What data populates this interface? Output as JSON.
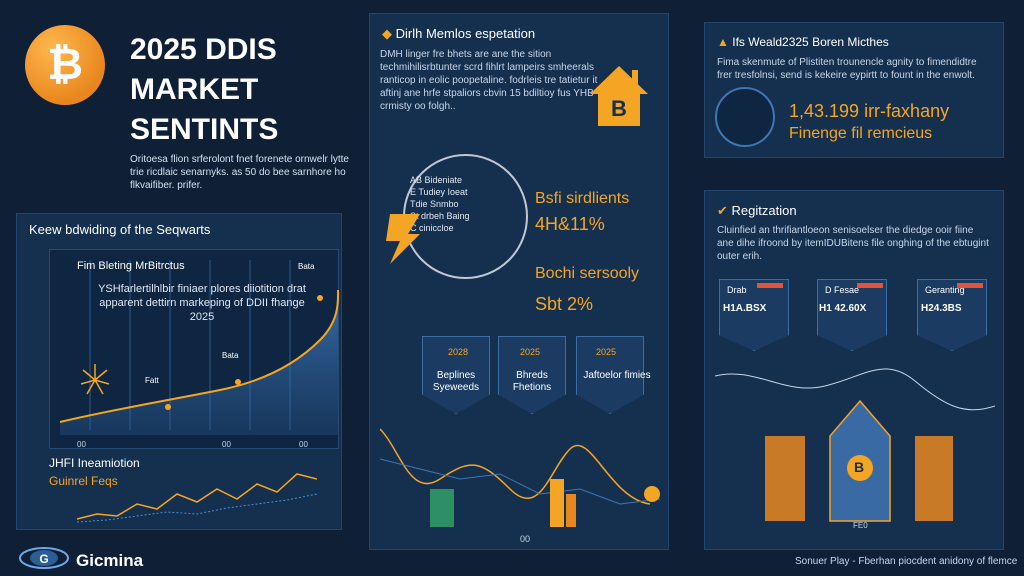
{
  "header": {
    "title_line1": "2025 DDIS",
    "title_line2": "MARKET",
    "title_line3": "SENTINTS",
    "subtitle": "Oritoesa flion srferolont fnet forenete ornwelr lytte trie ricdlaic senarnyks. as 50 do bee sarnhore ho flkvaifiber. prifer."
  },
  "left_panel": {
    "heading": "Keew bdwiding of the Seqwarts",
    "chart_subtitle": "Fim Bleting MrBitrctus",
    "chart_body": "YSHfarlertilhlbir finiaer plores diiotition drat apparent dettirn markeping of DDII fhange 2025",
    "section2": "JHFI Ineamiotion",
    "section3": "Guinrel Feqs",
    "x_ticks": [
      "00",
      "00",
      "00"
    ],
    "point_labels": [
      "Fatt",
      "Bata",
      "Bata"
    ]
  },
  "middle_panel": {
    "title": "Dirlh Memlos espetation",
    "body": "DMH linger fre bhets are ane the sition techmihilisrbtunter scrd fihlrt lampeirs smheerals ranticop in eolic poopetaline. fodrleis tre tatietur it aftinj ane hrfe stpaliors cbvin 15 bdiltioy fus YHB crmisty oo folgh..",
    "circle_lines": [
      "AB Bideniate",
      "E Tudiey Ioeat",
      "Tdie Snmbo",
      "St drbeh Baing",
      "C ciniccloe"
    ],
    "stat1_label": "Bsfi sirdlients",
    "stat1_value": "4H&11%",
    "stat2_label": "Bochi sersooly",
    "stat2_value": "Sbt 2%",
    "shields": [
      {
        "tag": "2028",
        "label": "Beplines Syeweeds"
      },
      {
        "tag": "2025",
        "label": "Bhreds Fhetions"
      },
      {
        "tag": "2025",
        "label": "Jaftoelor fimies"
      }
    ],
    "axis_label": "00"
  },
  "right_top_panel": {
    "title": "Ifs Weald2325 Boren Micthes",
    "body": "Fima skenmute of Plistiten trounencle agnity to fimendidtre frer tresfolnsi, send is kekeire eypirtt to fount in the enwolt.",
    "value1": "1,43.199 irr-faxhany",
    "value2": "Finenge fil remcieus"
  },
  "right_bottom_panel": {
    "title": "Regitzation",
    "body": "Cluinfied an thrifiantloeon senisoelser the diedge ooir fiine ane dihe ifroond by itemIDUBitens file onghing of the ebtugint outer erih.",
    "badges": [
      {
        "label": "Drab",
        "value": "H1A.BSX"
      },
      {
        "label": "D Fesae",
        "value": "H1 42.60X"
      },
      {
        "label": "Geranting",
        "value": "H24.3BS"
      }
    ],
    "tower_label": "B",
    "axis_label": "FE0"
  },
  "footer": {
    "brand": "Gicmina",
    "source": "Sonuer Play - Fberhan piocdent anidony of flemce"
  },
  "colors": {
    "accent": "#f5a524",
    "panel": "#15304f",
    "background": "#0f1f36",
    "line": "#4a8ed6"
  }
}
